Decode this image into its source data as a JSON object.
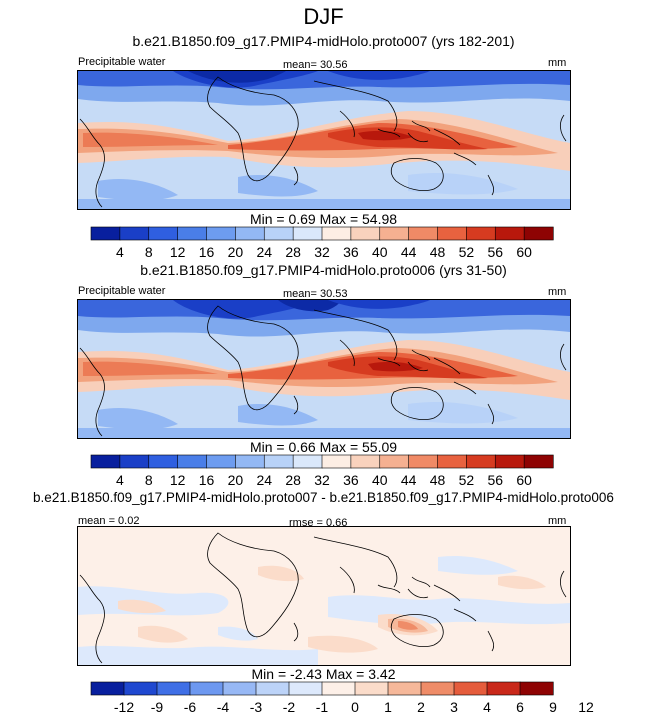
{
  "page_title": "DJF",
  "panels": [
    {
      "title": "b.e21.B1850.f09_g17.PMIP4-midHolo.proto007 (yrs 182-201)",
      "variable_label": "Precipitable water",
      "stat_label": "mean=  30.56",
      "units": "mm",
      "min_max": "Min =  0.69 Max =  54.98",
      "colorbar": {
        "colors": [
          "#081f9e",
          "#1a3fc7",
          "#2f5fe0",
          "#4a7ee8",
          "#6d9cf0",
          "#93b8f4",
          "#b8d2f8",
          "#dae8fb",
          "#fdeee4",
          "#f9d2bd",
          "#f5b091",
          "#f08a66",
          "#e8623f",
          "#d63b20",
          "#b8180c",
          "#8e0303"
        ],
        "ticks": [
          "4",
          "8",
          "12",
          "16",
          "20",
          "24",
          "28",
          "32",
          "36",
          "40",
          "44",
          "48",
          "52",
          "56",
          "60"
        ]
      }
    },
    {
      "title": "b.e21.B1850.f09_g17.PMIP4-midHolo.proto006 (yrs 31-50)",
      "variable_label": "Precipitable water",
      "stat_label": "mean=  30.53",
      "units": "mm",
      "min_max": "Min =  0.66 Max =  55.09",
      "colorbar": {
        "colors": [
          "#081f9e",
          "#1a3fc7",
          "#2f5fe0",
          "#4a7ee8",
          "#6d9cf0",
          "#93b8f4",
          "#b8d2f8",
          "#dae8fb",
          "#fdeee4",
          "#f9d2bd",
          "#f5b091",
          "#f08a66",
          "#e8623f",
          "#d63b20",
          "#b8180c",
          "#8e0303"
        ],
        "ticks": [
          "4",
          "8",
          "12",
          "16",
          "20",
          "24",
          "28",
          "32",
          "36",
          "40",
          "44",
          "48",
          "52",
          "56",
          "60"
        ]
      }
    },
    {
      "title": "b.e21.B1850.f09_g17.PMIP4-midHolo.proto007 - b.e21.B1850.f09_g17.PMIP4-midHolo.proto006",
      "mean_label": "mean =  0.02",
      "rmse_label": "rmse =  0.66",
      "units": "mm",
      "min_max": "Min =  -2.43 Max =   3.42",
      "colorbar": {
        "colors": [
          "#081f9e",
          "#1f48d0",
          "#3f6fe6",
          "#6d98f0",
          "#97b8f5",
          "#bcd3f8",
          "#dde9fc",
          "#fdf0e8",
          "#fbdcca",
          "#f6b89a",
          "#ef8c68",
          "#e55c3c",
          "#c9281a",
          "#8e0303"
        ],
        "ticks": [
          "-12",
          "-9",
          "-6",
          "-4",
          "-3",
          "-2",
          "-1",
          "0",
          "1",
          "2",
          "3",
          "4",
          "6",
          "9",
          "12"
        ]
      }
    }
  ]
}
